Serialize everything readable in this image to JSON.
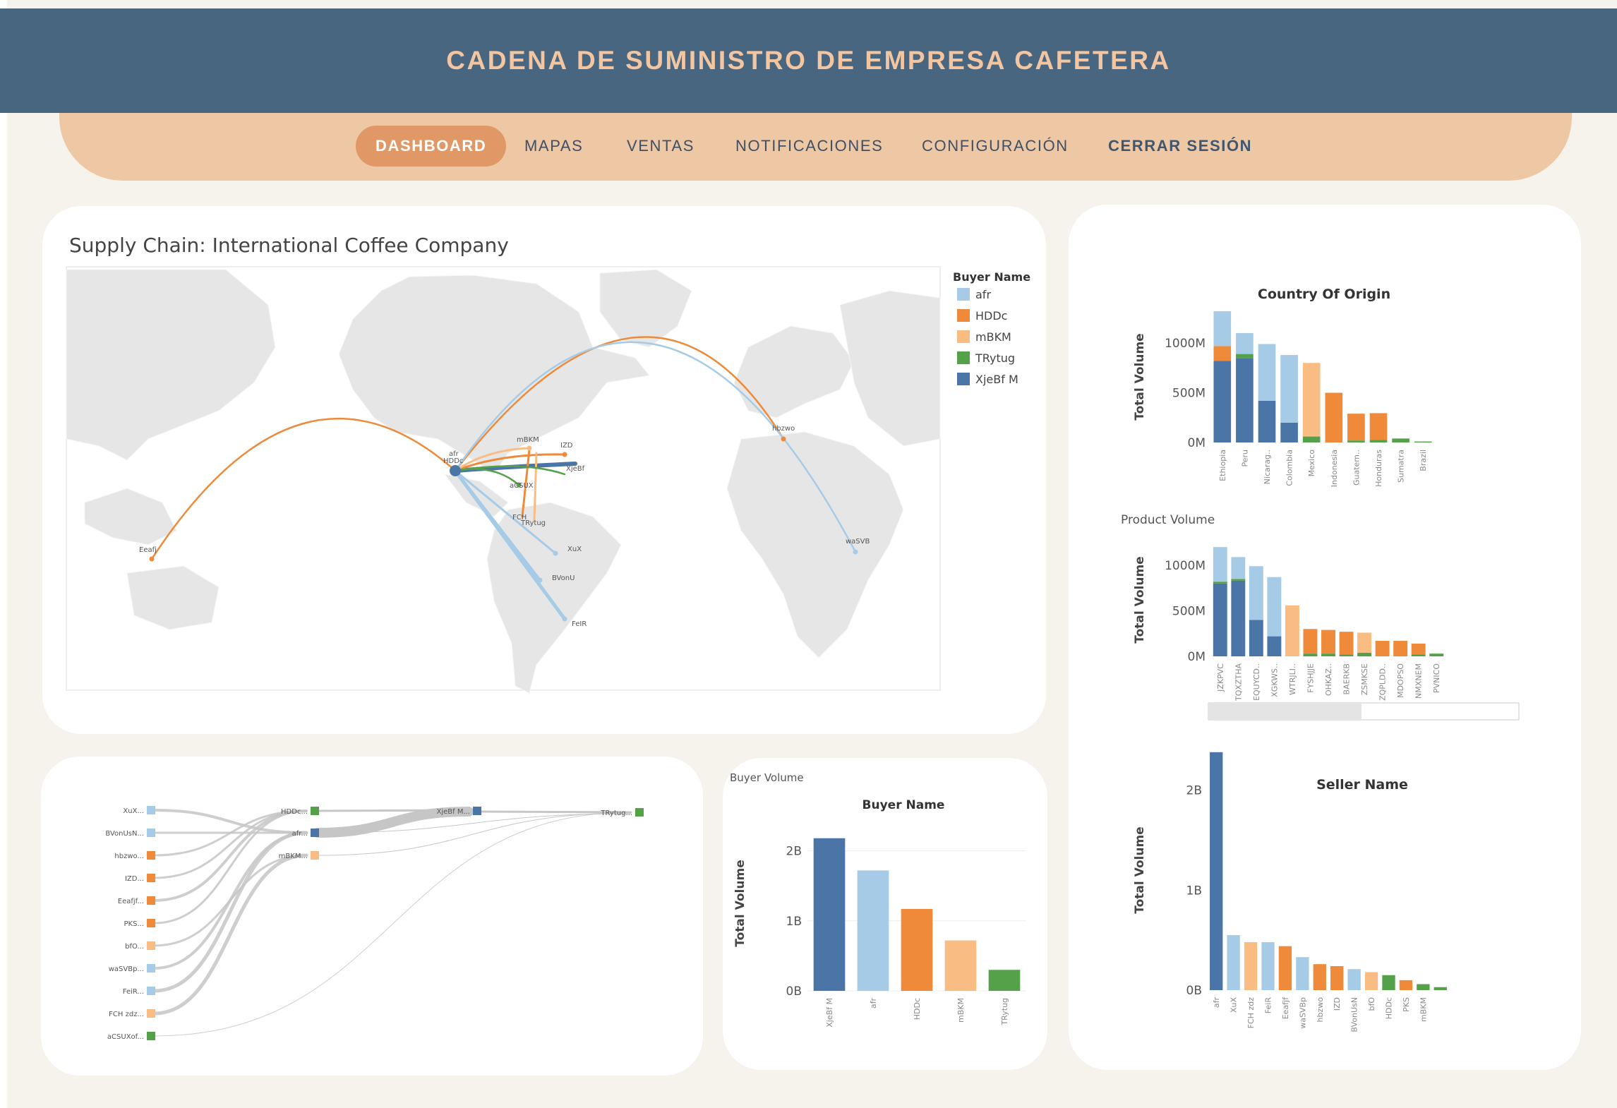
{
  "header": {
    "title": "CADENA DE SUMINISTRO DE EMPRESA CAFETERA"
  },
  "nav": {
    "items": [
      {
        "label": "DASHBOARD",
        "active": true
      },
      {
        "label": "MAPAS",
        "active": false
      },
      {
        "label": "VENTAS",
        "active": false
      },
      {
        "label": "NOTIFICACIONES",
        "active": false
      },
      {
        "label": "CONFIGURACIÓN",
        "active": false
      },
      {
        "label": "CERRAR SESIÓN",
        "active": false
      }
    ]
  },
  "colors": {
    "afr": "#a6cbe6",
    "HDDc": "#ee8a39",
    "mBKM": "#f9bd83",
    "TRytug": "#55a14a",
    "XjeBfM": "#4b75a6"
  },
  "map": {
    "title": "Supply Chain: International Coffee Company",
    "legend_title": "Buyer Name",
    "legend": [
      {
        "name": "afr",
        "color": "#a6cbe6"
      },
      {
        "name": "HDDc",
        "color": "#ee8a39"
      },
      {
        "name": "mBKM",
        "color": "#f9bd83"
      },
      {
        "name": "TRytug",
        "color": "#55a14a"
      },
      {
        "name": "XjeBf M",
        "color": "#4b75a6"
      }
    ],
    "place_labels": {
      "hub1": "afr",
      "hub2": "HDDc",
      "mbkm": "mBKM",
      "izd": "IZD",
      "xjebf": "XjeBf",
      "acsux": "aCSUX",
      "fch": "FCH",
      "trytug": "TRytug",
      "xux": "XuX",
      "bvonu": "BVonU",
      "feir": "FeIR",
      "eeafj": "Eeafj",
      "hbzwo": "hbzwo",
      "wasvb": "waSVB"
    }
  },
  "sankey": {
    "left_nodes": [
      {
        "label": "XuX...",
        "color": "#a6cbe6"
      },
      {
        "label": "BVonUsN...",
        "color": "#a6cbe6"
      },
      {
        "label": "hbzwo...",
        "color": "#ee8a39"
      },
      {
        "label": "IZD...",
        "color": "#ee8a39"
      },
      {
        "label": "Eeafjf...",
        "color": "#ee8a39"
      },
      {
        "label": "PKS...",
        "color": "#ee8a39"
      },
      {
        "label": "bfO...",
        "color": "#f9bd83"
      },
      {
        "label": "waSVBp...",
        "color": "#a6cbe6"
      },
      {
        "label": "FeiR...",
        "color": "#a6cbe6"
      },
      {
        "label": "FCH zdz...",
        "color": "#f9bd83"
      },
      {
        "label": "aCSUXof...",
        "color": "#55a14a"
      }
    ],
    "mid_nodes": [
      {
        "label": "HDDc...",
        "color": "#55a14a"
      },
      {
        "label": "afr...",
        "color": "#4b75a6"
      },
      {
        "label": "mBKM...",
        "color": "#f9bd83"
      }
    ],
    "node3": {
      "label": "XjeBf M...",
      "color": "#4b75a6"
    },
    "node4": {
      "label": "TRytug...",
      "color": "#55a14a"
    }
  },
  "buyer_chart": {
    "caption": "Buyer Volume",
    "outer_axis_label": "Total Volume",
    "chart_data": {
      "type": "bar",
      "title": "Buyer Name",
      "ylabel": "Total Volume",
      "ylim": [
        0,
        2.5
      ],
      "ticks": [
        {
          "v": 0,
          "t": "0B"
        },
        {
          "v": 1,
          "t": "1B"
        },
        {
          "v": 2,
          "t": "2B"
        }
      ],
      "categories": [
        "XjeBf M",
        "afr",
        "HDDc",
        "mBKM",
        "TRytug"
      ],
      "values": [
        2.18,
        1.72,
        1.17,
        0.72,
        0.3
      ],
      "colors": [
        "#4b75a6",
        "#a6cbe6",
        "#ee8a39",
        "#f9bd83",
        "#55a14a"
      ]
    }
  },
  "country_chart": {
    "chart_data": {
      "type": "bar",
      "stacked": true,
      "title": "Country Of Origin",
      "ylabel": "Total Volume",
      "ylim": [
        0,
        1320
      ],
      "ticks": [
        {
          "v": 0,
          "t": "0M"
        },
        {
          "v": 500,
          "t": "500M"
        },
        {
          "v": 1000,
          "t": "1000M"
        }
      ],
      "categories": [
        "Ethiopia",
        "Peru",
        "Nicarag..",
        "Colombia",
        "Mexico",
        "Indonesia",
        "Guatem..",
        "Honduras",
        "Sumatra",
        "Brazil"
      ],
      "series": [
        {
          "name": "XjeBf M",
          "color": "#4b75a6",
          "values": [
            820,
            850,
            420,
            200,
            0,
            0,
            0,
            0,
            0,
            0
          ]
        },
        {
          "name": "TRytug",
          "color": "#55a14a",
          "values": [
            0,
            40,
            0,
            0,
            60,
            0,
            20,
            25,
            40,
            10
          ]
        },
        {
          "name": "HDDc",
          "color": "#ee8a39",
          "values": [
            150,
            0,
            0,
            0,
            0,
            500,
            270,
            270,
            0,
            0
          ]
        },
        {
          "name": "mBKM",
          "color": "#f9bd83",
          "values": [
            0,
            0,
            0,
            0,
            740,
            0,
            0,
            0,
            0,
            0
          ]
        },
        {
          "name": "afr",
          "color": "#a6cbe6",
          "values": [
            350,
            210,
            570,
            680,
            0,
            0,
            0,
            0,
            0,
            0
          ]
        }
      ]
    }
  },
  "product_chart": {
    "caption": "Product Volume",
    "chart_data": {
      "type": "bar",
      "stacked": true,
      "ylabel": "Total Volume",
      "ylim": [
        0,
        1240
      ],
      "ticks": [
        {
          "v": 0,
          "t": "0M"
        },
        {
          "v": 500,
          "t": "500M"
        },
        {
          "v": 1000,
          "t": "1000M"
        }
      ],
      "categories": [
        "JZKPVC",
        "TQXZTHA",
        "EQUYCD..",
        "XGKWS..",
        "WTRJLI..",
        "FYSHJJE",
        "OHKAZ..",
        "BAERKB",
        "ZSMKSE",
        "ZQPLDD..",
        "MDOPSO",
        "NMXNEM",
        "PVNICO"
      ],
      "series": [
        {
          "name": "XjeBf M",
          "color": "#4b75a6",
          "values": [
            800,
            830,
            400,
            220,
            0,
            0,
            0,
            0,
            0,
            0,
            0,
            0,
            0
          ]
        },
        {
          "name": "TRytug",
          "color": "#55a14a",
          "values": [
            20,
            20,
            0,
            0,
            0,
            30,
            30,
            20,
            40,
            0,
            0,
            20,
            30
          ]
        },
        {
          "name": "HDDc",
          "color": "#ee8a39",
          "values": [
            0,
            0,
            0,
            0,
            0,
            270,
            260,
            250,
            0,
            170,
            170,
            120,
            0
          ]
        },
        {
          "name": "mBKM",
          "color": "#f9bd83",
          "values": [
            0,
            0,
            0,
            0,
            560,
            0,
            0,
            0,
            220,
            0,
            0,
            0,
            0
          ]
        },
        {
          "name": "afr",
          "color": "#a6cbe6",
          "values": [
            380,
            240,
            590,
            650,
            0,
            0,
            0,
            0,
            0,
            0,
            0,
            0,
            0
          ]
        }
      ]
    }
  },
  "seller_chart": {
    "chart_data": {
      "type": "bar",
      "title": "Seller Name",
      "ylabel": "Total Volume",
      "ylim": [
        0,
        2.4
      ],
      "ticks": [
        {
          "v": 0,
          "t": "0B"
        },
        {
          "v": 1,
          "t": "1B"
        },
        {
          "v": 2,
          "t": "2B"
        }
      ],
      "categories": [
        "afr",
        "XuX",
        "FCH zdz",
        "FeiR",
        "Eeafjf",
        "waSVBp",
        "hbzwo",
        "IZD",
        "BVonUsN",
        "bfO",
        "HDDc",
        "PKS",
        "mBKM",
        ""
      ],
      "values": [
        2.38,
        0.55,
        0.48,
        0.48,
        0.44,
        0.33,
        0.26,
        0.24,
        0.21,
        0.18,
        0.15,
        0.1,
        0.06,
        0.03
      ],
      "colors": [
        "#4b75a6",
        "#a6cbe6",
        "#f9bd83",
        "#a6cbe6",
        "#ee8a39",
        "#a6cbe6",
        "#ee8a39",
        "#ee8a39",
        "#a6cbe6",
        "#f9bd83",
        "#55a14a",
        "#ee8a39",
        "#55a14a",
        "#55a14a"
      ]
    }
  }
}
